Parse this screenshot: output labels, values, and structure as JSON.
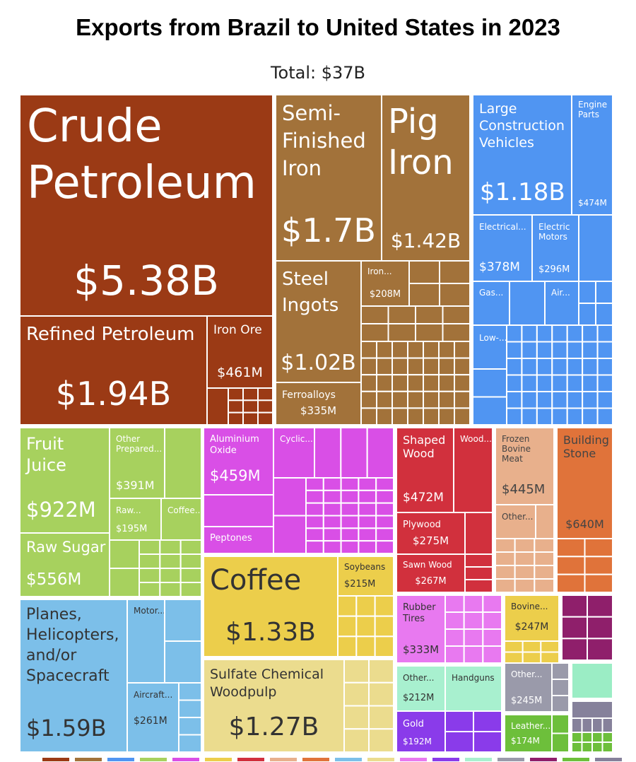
{
  "header": {
    "title": "Exports from Brazil to United States in 2023",
    "subtitle": "Total: $37B"
  },
  "colors": {
    "mineral": "#9b3a15",
    "metal": "#a2723a",
    "machine": "#5095f2",
    "vegetable": "#a7d15e",
    "chemical": "#d94fe6",
    "food": "#ecce4b",
    "wood": "#d1303d",
    "animal": "#e8b08c",
    "stone": "#e0733a",
    "transport": "#7cbfe9",
    "paper": "#ebdc8e",
    "plastic": "#e879f0",
    "gems": "#8a3bea",
    "weapons": "#a8f0cf",
    "misc": "#9a9aaa",
    "textile": "#8f1f6b",
    "footwear": "#6dbf3b",
    "grey": "#86819b",
    "mint": "#9bedc5"
  },
  "chart_data": {
    "type": "treemap",
    "title": "Exports from Brazil to United States in 2023",
    "subtitle": "Total: $37B",
    "unit": "USD",
    "items": [
      {
        "label": "Crude Petroleum",
        "value": "$5.38B",
        "group": "mineral"
      },
      {
        "label": "Refined Petroleum",
        "value": "$1.94B",
        "group": "mineral"
      },
      {
        "label": "Iron Ore",
        "value": "$461M",
        "group": "mineral"
      },
      {
        "label": "Semi-Finished Iron",
        "value": "$1.7B",
        "group": "metal"
      },
      {
        "label": "Pig Iron",
        "value": "$1.42B",
        "group": "metal"
      },
      {
        "label": "Steel Ingots",
        "value": "$1.02B",
        "group": "metal"
      },
      {
        "label": "Iron...",
        "value": "$208M",
        "group": "metal"
      },
      {
        "label": "Ferroalloys",
        "value": "$335M",
        "group": "metal"
      },
      {
        "label": "Large Construction Vehicles",
        "value": "$1.18B",
        "group": "machine"
      },
      {
        "label": "Engine Parts",
        "value": "$474M",
        "group": "machine"
      },
      {
        "label": "Electrical...",
        "value": "$378M",
        "group": "machine"
      },
      {
        "label": "Electric Motors",
        "value": "$296M",
        "group": "machine"
      },
      {
        "label": "Gas...",
        "value": "",
        "group": "machine"
      },
      {
        "label": "Air...",
        "value": "",
        "group": "machine"
      },
      {
        "label": "Low-...",
        "value": "",
        "group": "machine"
      },
      {
        "label": "Fruit Juice",
        "value": "$922M",
        "group": "vegetable"
      },
      {
        "label": "Other Prepared...",
        "value": "$391M",
        "group": "vegetable"
      },
      {
        "label": "Raw...",
        "value": "$195M",
        "group": "vegetable"
      },
      {
        "label": "Coffee...",
        "value": "",
        "group": "vegetable"
      },
      {
        "label": "Raw Sugar",
        "value": "$556M",
        "group": "vegetable"
      },
      {
        "label": "Aluminium Oxide",
        "value": "$459M",
        "group": "chemical"
      },
      {
        "label": "Cyclic...",
        "value": "",
        "group": "chemical"
      },
      {
        "label": "Peptones",
        "value": "",
        "group": "chemical"
      },
      {
        "label": "Coffee",
        "value": "$1.33B",
        "group": "food"
      },
      {
        "label": "Soybeans",
        "value": "$215M",
        "group": "food"
      },
      {
        "label": "Sulfate Chemical Woodpulp",
        "value": "$1.27B",
        "group": "paper"
      },
      {
        "label": "Shaped Wood",
        "value": "$472M",
        "group": "wood"
      },
      {
        "label": "Wood...",
        "value": "",
        "group": "wood"
      },
      {
        "label": "Plywood",
        "value": "$275M",
        "group": "wood"
      },
      {
        "label": "Sawn Wood",
        "value": "$267M",
        "group": "wood"
      },
      {
        "label": "Frozen Bovine Meat",
        "value": "$445M",
        "group": "animal"
      },
      {
        "label": "Other...",
        "value": "",
        "group": "animal"
      },
      {
        "label": "Building Stone",
        "value": "$640M",
        "group": "stone"
      },
      {
        "label": "Planes, Helicopters, and/or Spacecraft",
        "value": "$1.59B",
        "group": "transport"
      },
      {
        "label": "Motor...",
        "value": "",
        "group": "transport"
      },
      {
        "label": "Aircraft...",
        "value": "$261M",
        "group": "transport"
      },
      {
        "label": "Rubber Tires",
        "value": "$333M",
        "group": "plastic"
      },
      {
        "label": "Bovine...",
        "value": "$247M",
        "group": "food"
      },
      {
        "label": "Other...",
        "value": "$212M",
        "group": "weapons"
      },
      {
        "label": "Handguns",
        "value": "",
        "group": "weapons"
      },
      {
        "label": "Other...",
        "value": "$245M",
        "group": "misc"
      },
      {
        "label": "Gold",
        "value": "$192M",
        "group": "gems"
      },
      {
        "label": "Leather...",
        "value": "$174M",
        "group": "footwear"
      }
    ]
  }
}
